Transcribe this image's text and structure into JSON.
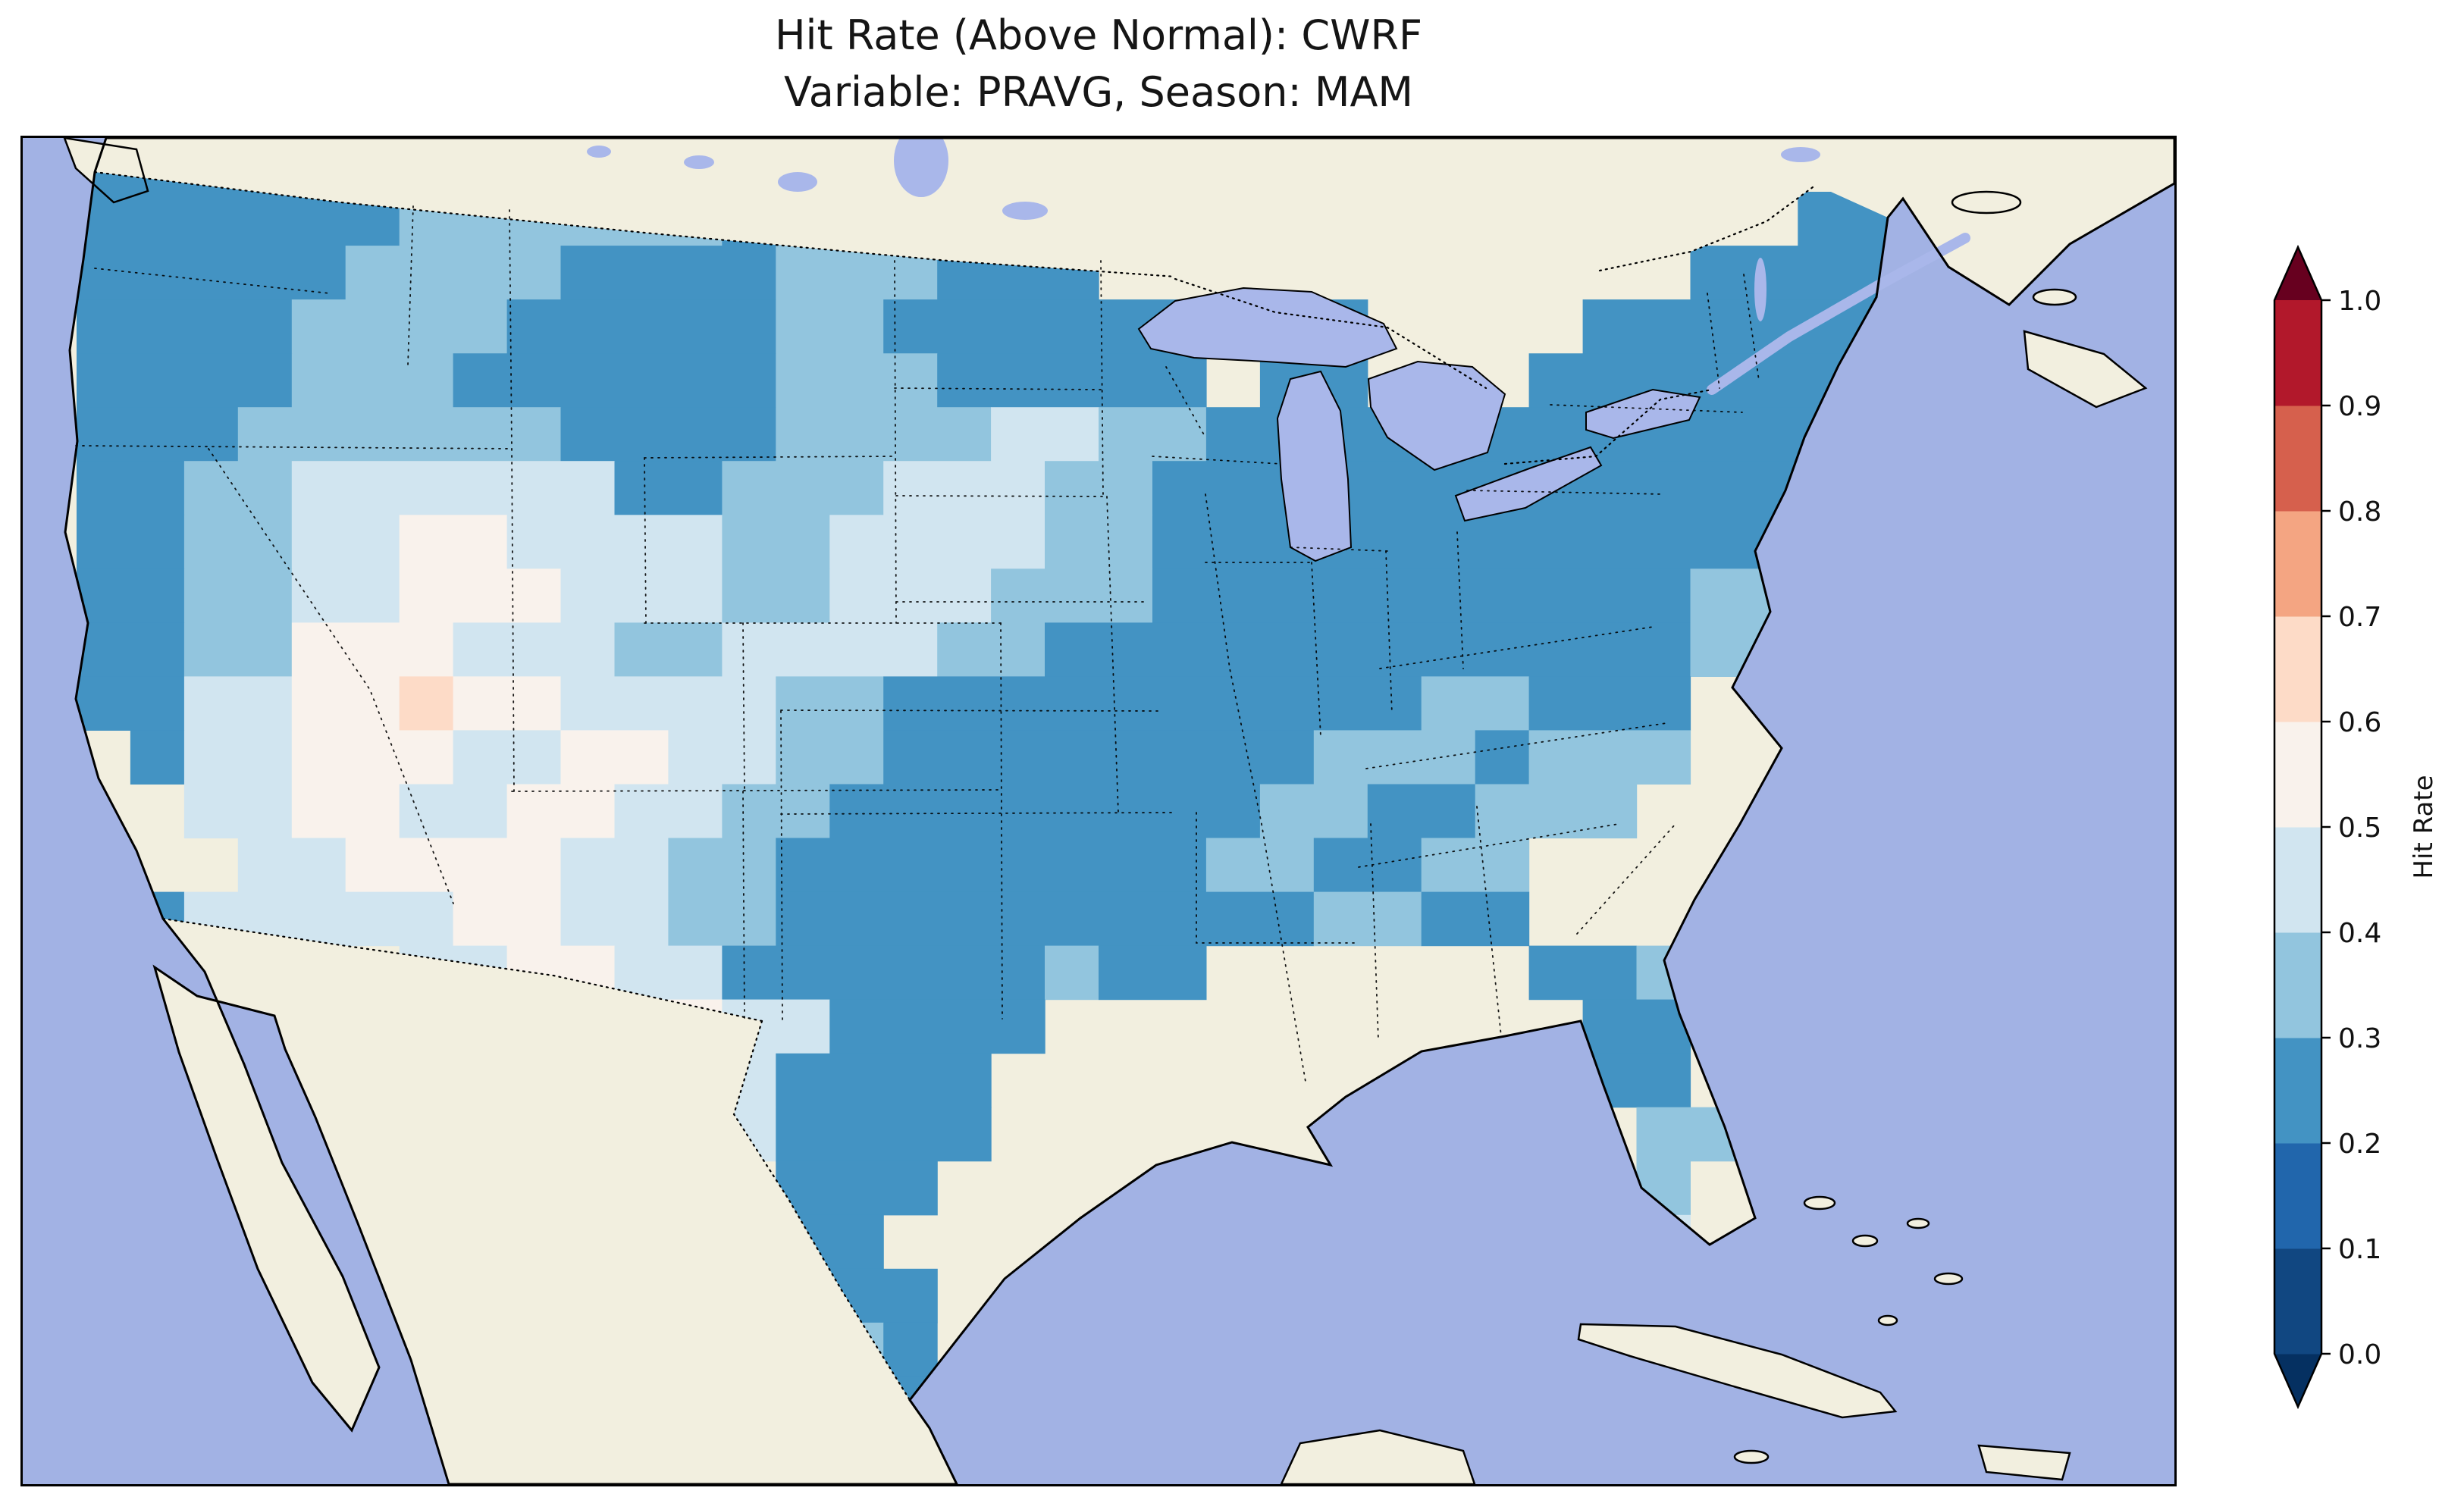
{
  "chart_data": {
    "type": "heatmap",
    "title": "Hit Rate (Above Normal): CWRF",
    "subtitle": "Variable: PRAVG, Season: MAM",
    "colorbar": {
      "label": "Hit Rate",
      "orientation": "vertical",
      "extend": "both",
      "ticks": [
        "0.0",
        "0.1",
        "0.2",
        "0.3",
        "0.4",
        "0.5",
        "0.6",
        "0.7",
        "0.8",
        "0.9",
        "1.0"
      ],
      "bin_edges": [
        0.0,
        0.1,
        0.2,
        0.3,
        0.4,
        0.5,
        0.6,
        0.7,
        0.8,
        0.9,
        1.0
      ],
      "bin_colors": [
        "#114781",
        "#2166ac",
        "#4393c3",
        "#92c5de",
        "#d1e5f0",
        "#f9f2ec",
        "#fddbc7",
        "#f4a582",
        "#d6604d",
        "#b2182b"
      ],
      "under_color": "#053061",
      "over_color": "#67001f"
    },
    "map": {
      "region": "Continental United States",
      "ocean_color": "#a2b2e4",
      "land_color": "#f2efdf",
      "lake_color": "#a9b7ea",
      "grid_shape": [
        25,
        40
      ],
      "value_encoding": {
        ".": null,
        "2": 0.25,
        "3": 0.35,
        "4": 0.45,
        "5": 0.55,
        "6": 0.65
      },
      "observed_value_range": [
        0.2,
        0.7
      ],
      "grid_rows_rle": [
        [
          [
            ".",
            1
          ],
          [
            "2",
            5
          ],
          [
            ".",
            34
          ]
        ],
        [
          [
            ".",
            1
          ],
          [
            "2",
            6
          ],
          [
            "3",
            6
          ],
          [
            "2",
            4
          ],
          [
            ".",
            16
          ],
          [
            "2",
            2
          ],
          [
            ".",
            5
          ]
        ],
        [
          [
            ".",
            1
          ],
          [
            "2",
            5
          ],
          [
            "3",
            4
          ],
          [
            "2",
            4
          ],
          [
            "3",
            3
          ],
          [
            "2",
            3
          ],
          [
            ".",
            11
          ],
          [
            "2",
            4
          ],
          [
            ".",
            5
          ]
        ],
        [
          [
            ".",
            1
          ],
          [
            "2",
            4
          ],
          [
            "3",
            4
          ],
          [
            "2",
            5
          ],
          [
            "3",
            2
          ],
          [
            "2",
            9
          ],
          [
            ".",
            4
          ],
          [
            "2",
            6
          ],
          [
            ".",
            5
          ]
        ],
        [
          [
            ".",
            1
          ],
          [
            "2",
            4
          ],
          [
            "3",
            3
          ],
          [
            "2",
            6
          ],
          [
            "3",
            3
          ],
          [
            "2",
            5
          ],
          [
            ".",
            1
          ],
          [
            "2",
            2
          ],
          [
            ".",
            3
          ],
          [
            "2",
            7
          ],
          [
            ".",
            5
          ]
        ],
        [
          [
            ".",
            1
          ],
          [
            "2",
            3
          ],
          [
            "3",
            6
          ],
          [
            "2",
            4
          ],
          [
            "3",
            4
          ],
          [
            "4",
            2
          ],
          [
            "3",
            2
          ],
          [
            "2",
            12
          ],
          [
            ".",
            6
          ]
        ],
        [
          [
            ".",
            1
          ],
          [
            "2",
            2
          ],
          [
            "3",
            2
          ],
          [
            "4",
            6
          ],
          [
            "2",
            2
          ],
          [
            "3",
            3
          ],
          [
            "4",
            3
          ],
          [
            "3",
            2
          ],
          [
            "2",
            12
          ],
          [
            ".",
            7
          ]
        ],
        [
          [
            ".",
            1
          ],
          [
            "2",
            2
          ],
          [
            "3",
            2
          ],
          [
            "4",
            2
          ],
          [
            "5",
            2
          ],
          [
            "4",
            4
          ],
          [
            "3",
            2
          ],
          [
            "4",
            4
          ],
          [
            "3",
            2
          ],
          [
            "2",
            12
          ],
          [
            ".",
            7
          ]
        ],
        [
          [
            ".",
            1
          ],
          [
            "2",
            2
          ],
          [
            "3",
            2
          ],
          [
            "4",
            2
          ],
          [
            "5",
            3
          ],
          [
            "4",
            3
          ],
          [
            "3",
            2
          ],
          [
            "4",
            3
          ],
          [
            "3",
            3
          ],
          [
            "2",
            10
          ],
          [
            "3",
            2
          ],
          [
            ".",
            7
          ]
        ],
        [
          [
            ".",
            1
          ],
          [
            "2",
            2
          ],
          [
            "3",
            2
          ],
          [
            "5",
            3
          ],
          [
            "4",
            3
          ],
          [
            "3",
            2
          ],
          [
            "4",
            4
          ],
          [
            "3",
            2
          ],
          [
            "2",
            12
          ],
          [
            "3",
            2
          ],
          [
            ".",
            7
          ]
        ],
        [
          [
            ".",
            1
          ],
          [
            "2",
            2
          ],
          [
            "4",
            2
          ],
          [
            "5",
            2
          ],
          [
            "6",
            1
          ],
          [
            "5",
            2
          ],
          [
            "4",
            4
          ],
          [
            "3",
            2
          ],
          [
            "2",
            10
          ],
          [
            "3",
            2
          ],
          [
            "2",
            3
          ],
          [
            ".",
            9
          ]
        ],
        [
          [
            ".",
            2
          ],
          [
            "2",
            1
          ],
          [
            "4",
            2
          ],
          [
            "5",
            3
          ],
          [
            "4",
            2
          ],
          [
            "5",
            2
          ],
          [
            "4",
            2
          ],
          [
            "3",
            2
          ],
          [
            "2",
            8
          ],
          [
            "3",
            3
          ],
          [
            "2",
            1
          ],
          [
            "3",
            3
          ],
          [
            ".",
            9
          ]
        ],
        [
          [
            ".",
            3
          ],
          [
            "4",
            2
          ],
          [
            "5",
            2
          ],
          [
            "4",
            2
          ],
          [
            "5",
            2
          ],
          [
            "4",
            2
          ],
          [
            "3",
            2
          ],
          [
            "2",
            8
          ],
          [
            "3",
            2
          ],
          [
            "2",
            2
          ],
          [
            "3",
            3
          ],
          [
            ".",
            10
          ]
        ],
        [
          [
            ".",
            4
          ],
          [
            "4",
            2
          ],
          [
            "5",
            4
          ],
          [
            "4",
            2
          ],
          [
            "3",
            2
          ],
          [
            "2",
            8
          ],
          [
            "3",
            2
          ],
          [
            "2",
            2
          ],
          [
            "3",
            2
          ],
          [
            ".",
            12
          ]
        ],
        [
          [
            ".",
            2
          ],
          [
            "2",
            1
          ],
          [
            "4",
            5
          ],
          [
            "5",
            2
          ],
          [
            "4",
            2
          ],
          [
            "3",
            2
          ],
          [
            "2",
            10
          ],
          [
            "3",
            2
          ],
          [
            "2",
            2
          ],
          [
            ".",
            12
          ]
        ],
        [
          [
            ".",
            7
          ],
          [
            "4",
            2
          ],
          [
            "5",
            2
          ],
          [
            "4",
            2
          ],
          [
            "2",
            6
          ],
          [
            "3",
            1
          ],
          [
            "2",
            2
          ],
          [
            ".",
            6
          ],
          [
            "2",
            2
          ],
          [
            "3",
            1
          ],
          [
            ".",
            9
          ]
        ],
        [
          [
            ".",
            10
          ],
          [
            "4",
            2
          ],
          [
            "5",
            1
          ],
          [
            "4",
            2
          ],
          [
            "2",
            4
          ],
          [
            ".",
            10
          ],
          [
            "2",
            2
          ],
          [
            ".",
            9
          ]
        ],
        [
          [
            ".",
            12
          ],
          [
            "4",
            2
          ],
          [
            "2",
            4
          ],
          [
            ".",
            11
          ],
          [
            "2",
            2
          ],
          [
            ".",
            9
          ]
        ],
        [
          [
            ".",
            13
          ],
          [
            "4",
            1
          ],
          [
            "2",
            4
          ],
          [
            ".",
            12
          ],
          [
            "3",
            2
          ],
          [
            ".",
            8
          ]
        ],
        [
          [
            ".",
            14
          ],
          [
            "2",
            3
          ],
          [
            ".",
            13
          ],
          [
            "3",
            1
          ],
          [
            ".",
            9
          ]
        ],
        [
          [
            ".",
            14
          ],
          [
            "2",
            2
          ],
          [
            ".",
            14
          ],
          [
            "4",
            1
          ],
          [
            ".",
            9
          ]
        ],
        [
          [
            ".",
            15
          ],
          [
            "2",
            2
          ],
          [
            ".",
            23
          ]
        ],
        [
          [
            ".",
            15
          ],
          [
            "3",
            1
          ],
          [
            "2",
            1
          ],
          [
            ".",
            23
          ]
        ],
        [
          [
            ".",
            16
          ],
          [
            "2",
            1
          ],
          [
            ".",
            23
          ]
        ],
        [
          [
            ".",
            40
          ]
        ]
      ],
      "summary": "Most of CONUS shows hit rates of 0.2-0.3 (medium blue) across the Northwest, northern tier, Midwest, Southeast and Northeast; 0.3-0.5 (light blues) over the central Plains, Great Basin and Texas; 0.5-0.6 (near white) over Arizona/Four Corners and parts of Texas; a single 0.6-0.7 (peach) cell near the Arizona-Utah border."
    }
  }
}
